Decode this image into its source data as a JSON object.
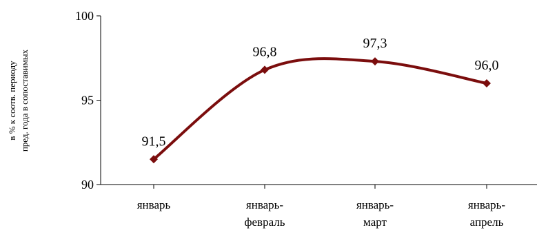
{
  "chart_data": {
    "type": "line",
    "title": "",
    "xlabel": "",
    "ylabel_lines": [
      "в % к соотв. периоду",
      "пред. года в сопоставимых"
    ],
    "categories": [
      [
        "январь"
      ],
      [
        "январь-",
        "февраль"
      ],
      [
        "январь-",
        "март"
      ],
      [
        "январь-",
        "апрель"
      ]
    ],
    "series": [
      {
        "values": [
          91.5,
          96.8,
          97.3,
          96.0
        ],
        "data_labels": [
          "91,5",
          "96,8",
          "97,3",
          "96,0"
        ]
      }
    ],
    "ylim": [
      90,
      100
    ],
    "yticks": [
      90,
      95,
      100
    ],
    "ytick_labels": [
      "90",
      "95",
      "100"
    ],
    "grid": false,
    "smooth": true,
    "marker": "diamond",
    "line_color": "#7b0d0d"
  }
}
